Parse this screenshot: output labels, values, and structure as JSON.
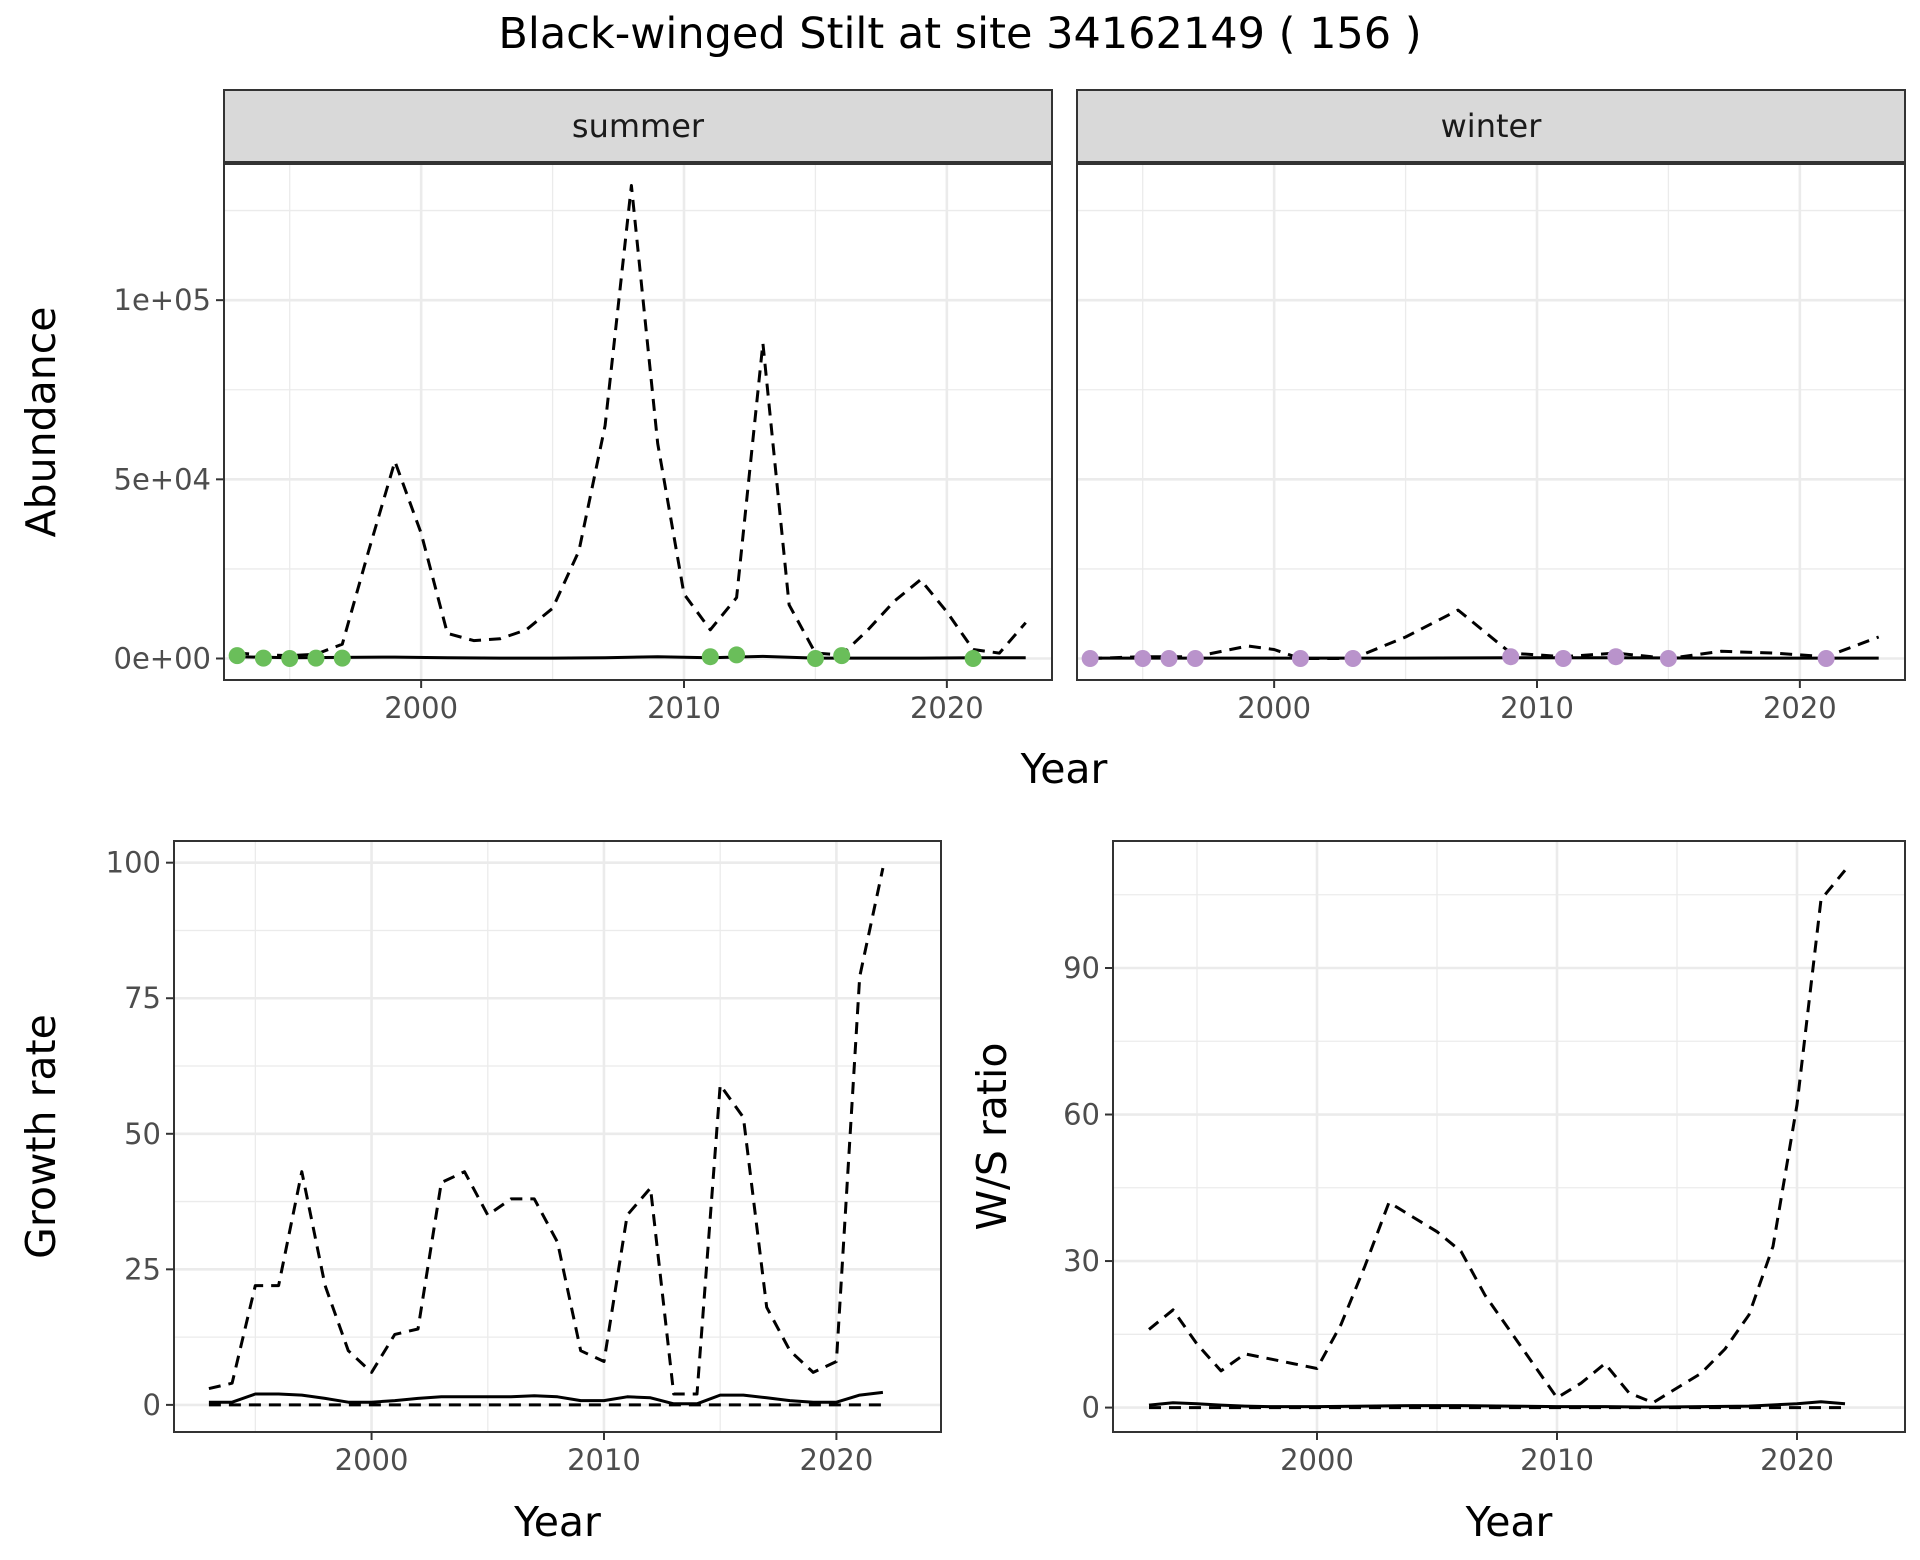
{
  "title": "Black-winged Stilt at site 34162149 ( 156 )",
  "colors": {
    "summer_points": "#6ABE5A",
    "winter_points": "#B993CB",
    "line": "#000000",
    "grid": "#EBEBEB",
    "strip_fill": "#D9D9D9"
  },
  "chart_data": [
    {
      "type": "line",
      "facet": "summer",
      "xlabel": "Year",
      "ylabel": "Abundance",
      "xlim": [
        1992.5,
        2024
      ],
      "ylim": [
        -6000,
        138000
      ],
      "x_ticks": [
        2000,
        2010,
        2020
      ],
      "x_tick_labels": [
        "2000",
        "2010",
        "2020"
      ],
      "y_ticks": [
        0,
        50000,
        100000
      ],
      "y_tick_labels": [
        "0e+00",
        "5e+04",
        "1e+05"
      ],
      "grid": true,
      "series": [
        {
          "style": "dashed",
          "x": [
            1993,
            1994,
            1995,
            1996,
            1997,
            1998,
            1999,
            2000,
            2001,
            2002,
            2003,
            2004,
            2005,
            2006,
            2007,
            2008,
            2009,
            2010,
            2011,
            2012,
            2013,
            2014,
            2015,
            2016,
            2017,
            2018,
            2019,
            2020,
            2021,
            2022,
            2023
          ],
          "y": [
            1500,
            1000,
            800,
            1200,
            4000,
            30000,
            55000,
            35000,
            7000,
            5000,
            5500,
            8000,
            14000,
            30000,
            65000,
            132000,
            60000,
            18000,
            8000,
            17000,
            88000,
            15000,
            1500,
            1000,
            8000,
            16000,
            22000,
            13000,
            2500,
            1500,
            10000
          ]
        },
        {
          "style": "solid",
          "x": [
            1993,
            1995,
            1997,
            1999,
            2001,
            2003,
            2005,
            2007,
            2009,
            2011,
            2013,
            2015,
            2017,
            2019,
            2021,
            2023
          ],
          "y": [
            500,
            200,
            300,
            400,
            200,
            100,
            100,
            200,
            500,
            200,
            600,
            100,
            100,
            100,
            200,
            200
          ]
        },
        {
          "style": "points",
          "x": [
            1993,
            1994,
            1995,
            1996,
            1997,
            2011,
            2012,
            2015,
            2016,
            2021
          ],
          "y": [
            800,
            100,
            0,
            100,
            100,
            500,
            1000,
            0,
            800,
            0
          ]
        }
      ]
    },
    {
      "type": "line",
      "facet": "winter",
      "xlabel": "Year",
      "ylabel": "Abundance",
      "xlim": [
        1992.5,
        2024
      ],
      "ylim": [
        -6000,
        138000
      ],
      "x_ticks": [
        2000,
        2010,
        2020
      ],
      "x_tick_labels": [
        "2000",
        "2010",
        "2020"
      ],
      "y_ticks": [
        0,
        50000,
        100000
      ],
      "y_tick_labels": [
        "0e+00",
        "5e+04",
        "1e+05"
      ],
      "grid": true,
      "series": [
        {
          "style": "dashed",
          "x": [
            1993,
            1995,
            1997,
            1999,
            2000,
            2001,
            2003,
            2005,
            2007,
            2009,
            2011,
            2013,
            2015,
            2017,
            2019,
            2021,
            2023
          ],
          "y": [
            0,
            500,
            500,
            3500,
            2500,
            0,
            0,
            6000,
            13500,
            1500,
            500,
            1500,
            0,
            2000,
            1500,
            500,
            6000
          ]
        },
        {
          "style": "solid",
          "x": [
            1993,
            1997,
            2001,
            2005,
            2009,
            2013,
            2017,
            2021,
            2023
          ],
          "y": [
            100,
            100,
            100,
            100,
            200,
            200,
            100,
            100,
            100
          ]
        },
        {
          "style": "points",
          "x": [
            1993,
            1995,
            1996,
            1997,
            2001,
            2003,
            2009,
            2011,
            2013,
            2015,
            2021
          ],
          "y": [
            0,
            0,
            0,
            0,
            0,
            0,
            500,
            0,
            500,
            0,
            0
          ]
        }
      ]
    },
    {
      "type": "line",
      "xlabel": "Year",
      "ylabel": "Growth rate",
      "xlim": [
        1991.5,
        2024.5
      ],
      "ylim": [
        -5,
        104
      ],
      "x_ticks": [
        2000,
        2010,
        2020
      ],
      "x_tick_labels": [
        "2000",
        "2010",
        "2020"
      ],
      "y_ticks": [
        0,
        25,
        50,
        75,
        100
      ],
      "y_tick_labels": [
        "0",
        "25",
        "50",
        "75",
        "100"
      ],
      "grid": true,
      "series": [
        {
          "style": "dashed",
          "x": [
            1993,
            1994,
            1995,
            1996,
            1997,
            1998,
            1999,
            2000,
            2001,
            2002,
            2003,
            2004,
            2005,
            2006,
            2007,
            2008,
            2009,
            2010,
            2011,
            2012,
            2013,
            2014,
            2015,
            2016,
            2017,
            2018,
            2019,
            2020,
            2021,
            2022
          ],
          "y": [
            3,
            4,
            22,
            22,
            43,
            22,
            10,
            6,
            13,
            14,
            41,
            43,
            35,
            38,
            38,
            30,
            10,
            8,
            35,
            40,
            2,
            2,
            59,
            53,
            18,
            10,
            6,
            8,
            79,
            99
          ]
        },
        {
          "style": "solid",
          "x": [
            1993,
            1994,
            1995,
            1996,
            1997,
            1998,
            1999,
            2000,
            2001,
            2002,
            2003,
            2004,
            2005,
            2006,
            2007,
            2008,
            2009,
            2010,
            2011,
            2012,
            2013,
            2014,
            2015,
            2016,
            2017,
            2018,
            2019,
            2020,
            2021,
            2022
          ],
          "y": [
            0.5,
            0.5,
            2,
            2,
            1.8,
            1.2,
            0.5,
            0.5,
            0.8,
            1.2,
            1.5,
            1.5,
            1.5,
            1.5,
            1.7,
            1.5,
            0.8,
            0.8,
            1.5,
            1.3,
            0.2,
            0.2,
            1.8,
            1.8,
            1.3,
            0.8,
            0.5,
            0.5,
            1.8,
            2.3
          ]
        },
        {
          "style": "dashed",
          "x": [
            1993,
            2000,
            2010,
            2020,
            2022
          ],
          "y": [
            0,
            0,
            0,
            0,
            0
          ]
        }
      ]
    },
    {
      "type": "line",
      "xlabel": "Year",
      "ylabel": "W/S ratio",
      "xlim": [
        1991.5,
        2024.5
      ],
      "ylim": [
        -5,
        116
      ],
      "x_ticks": [
        2000,
        2010,
        2020
      ],
      "x_tick_labels": [
        "2000",
        "2010",
        "2020"
      ],
      "y_ticks": [
        0,
        30,
        60,
        90
      ],
      "y_tick_labels": [
        "0",
        "30",
        "60",
        "90"
      ],
      "grid": true,
      "series": [
        {
          "style": "dashed",
          "x": [
            1993,
            1994,
            1995,
            1996,
            1997,
            1998,
            1999,
            2000,
            2001,
            2002,
            2003,
            2004,
            2005,
            2006,
            2007,
            2008,
            2009,
            2010,
            2011,
            2012,
            2013,
            2014,
            2015,
            2016,
            2017,
            2018,
            2019,
            2020,
            2021,
            2022
          ],
          "y": [
            16,
            20,
            13,
            7.5,
            11,
            10,
            9,
            8,
            17,
            29,
            42,
            39,
            36,
            32,
            23,
            16,
            9,
            2,
            5,
            9,
            3,
            1,
            4,
            7,
            12,
            19,
            33,
            62,
            104,
            110
          ]
        },
        {
          "style": "solid",
          "x": [
            1993,
            1994,
            1995,
            1996,
            1997,
            1998,
            1999,
            2000,
            2002,
            2004,
            2006,
            2008,
            2010,
            2012,
            2014,
            2016,
            2018,
            2020,
            2021,
            2022
          ],
          "y": [
            0.5,
            1,
            0.8,
            0.5,
            0.3,
            0.2,
            0.2,
            0.2,
            0.3,
            0.4,
            0.4,
            0.3,
            0.2,
            0.2,
            0.1,
            0.2,
            0.3,
            0.8,
            1.2,
            0.8
          ]
        },
        {
          "style": "dashed",
          "x": [
            1993,
            2000,
            2010,
            2020,
            2022
          ],
          "y": [
            0,
            0,
            0,
            0,
            0
          ]
        }
      ]
    }
  ]
}
